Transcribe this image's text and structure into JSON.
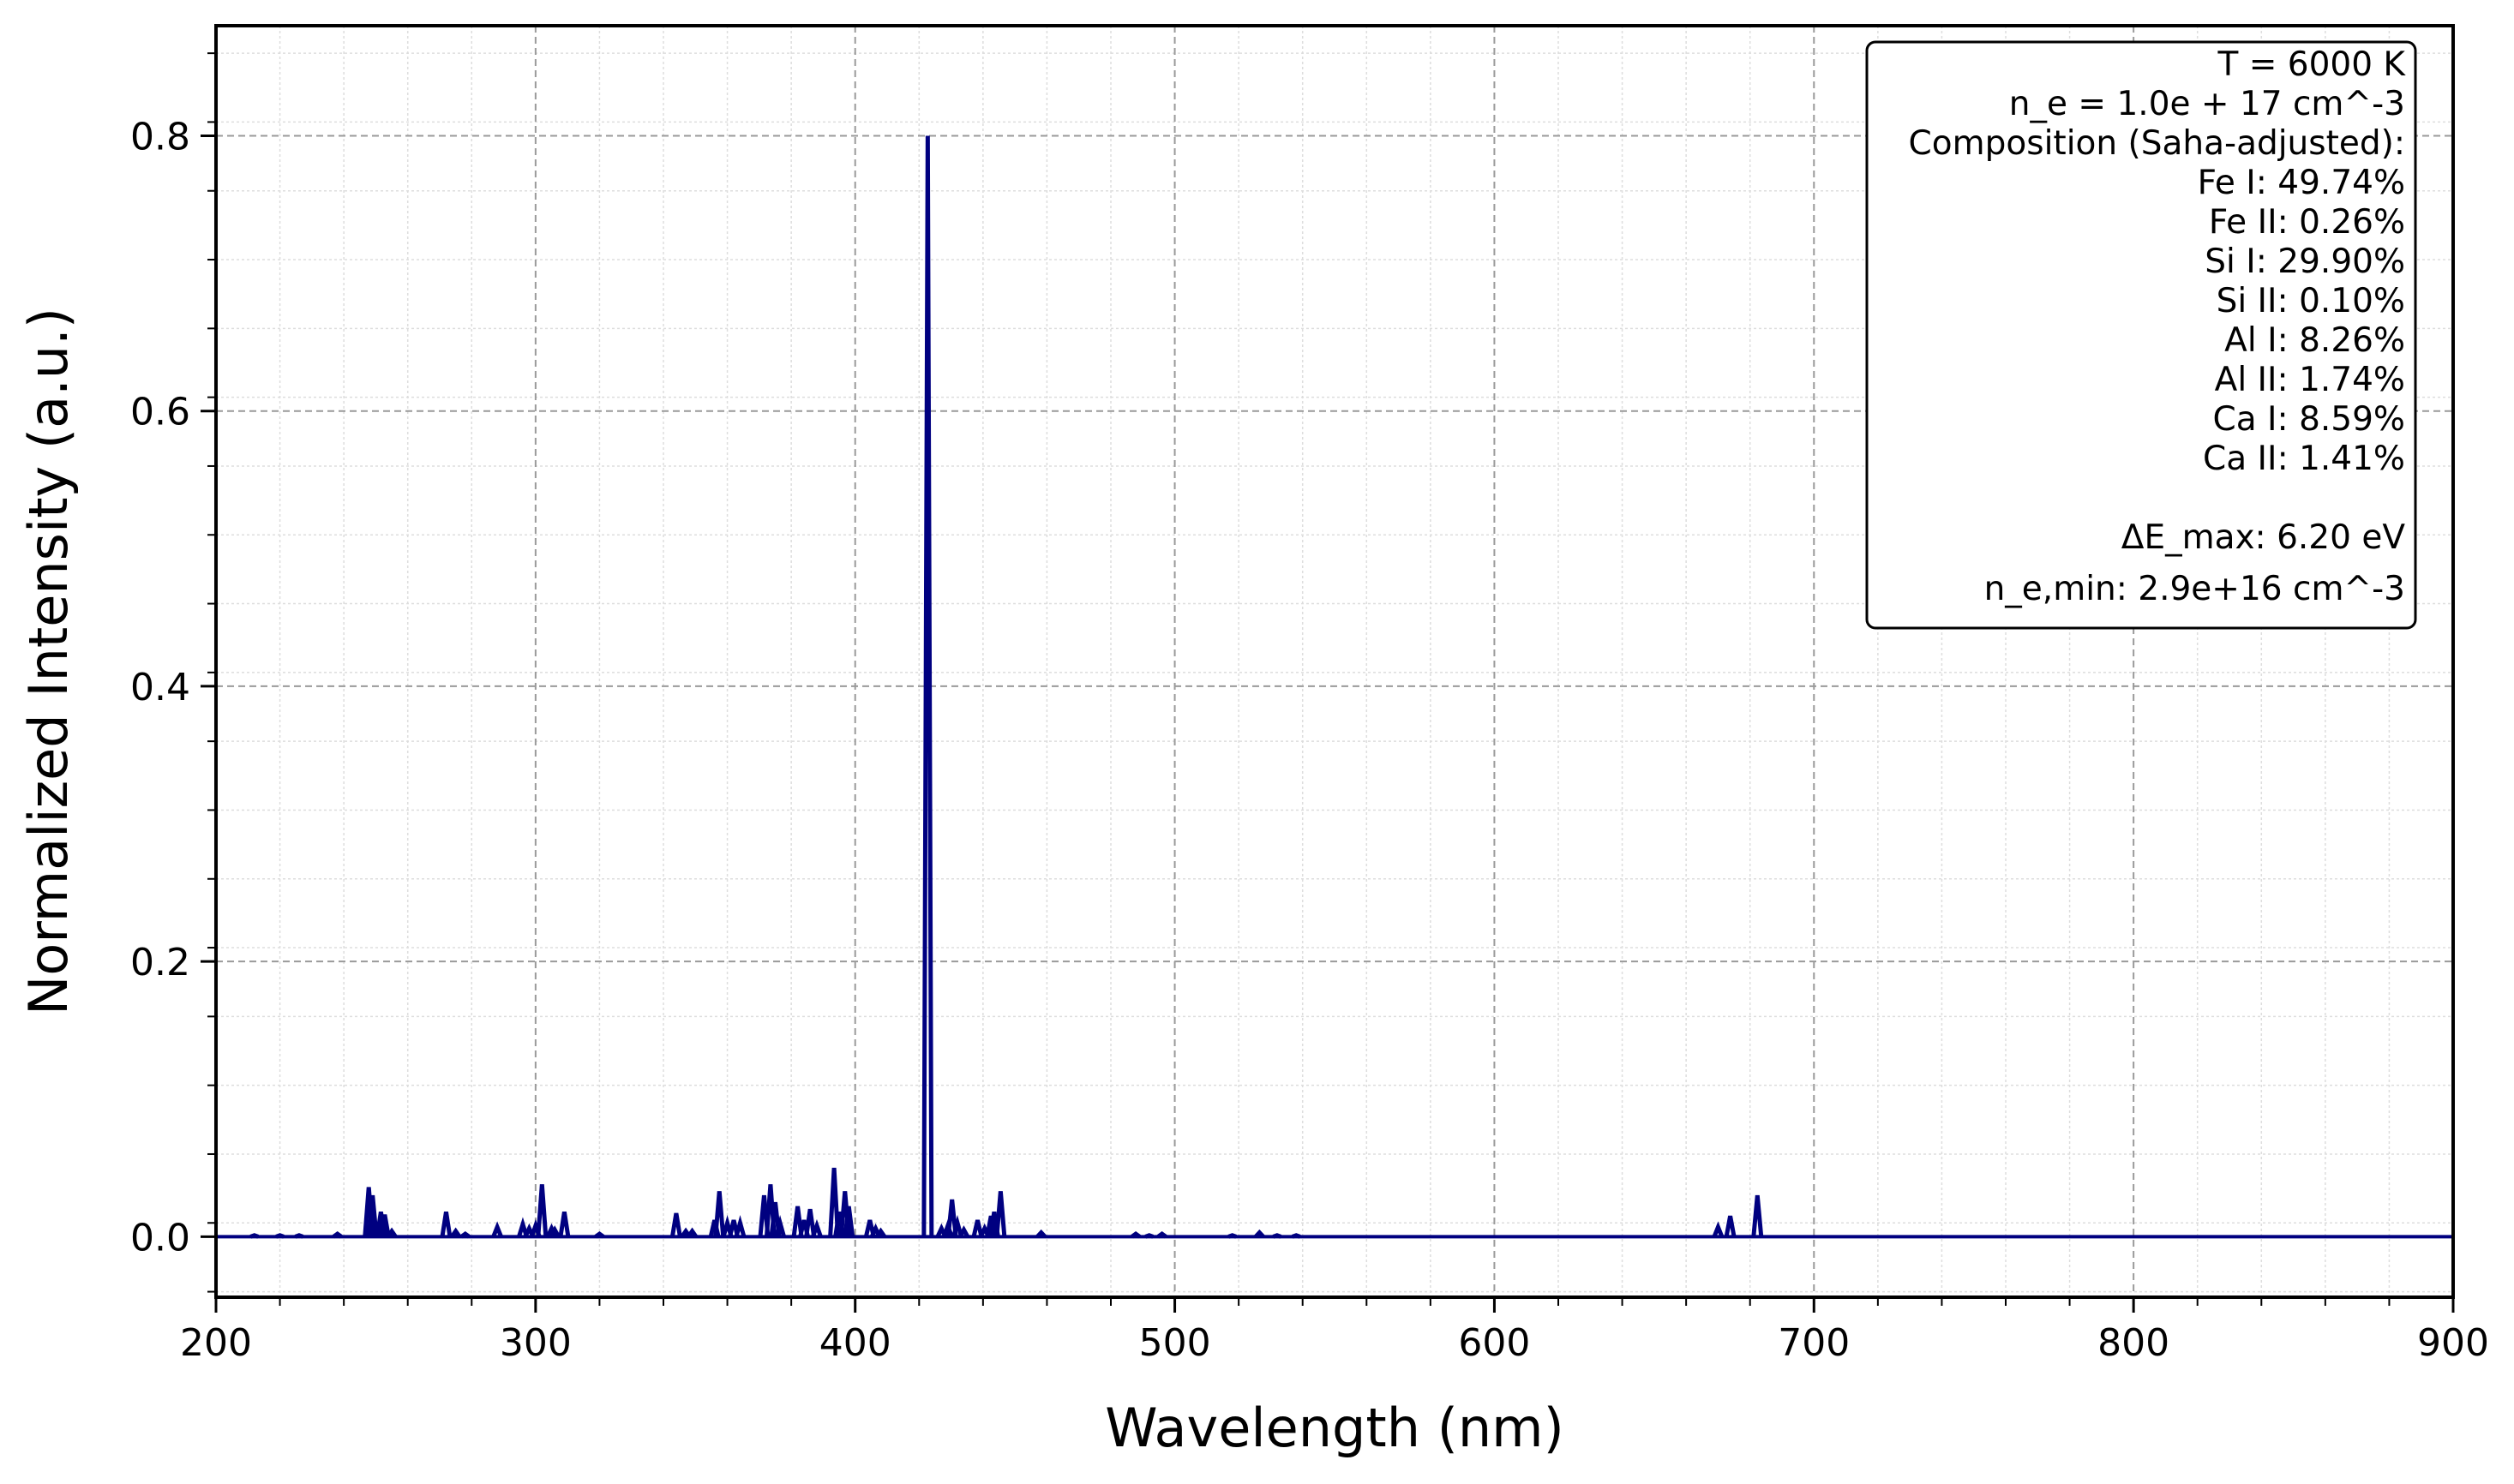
{
  "chart_data": {
    "type": "line",
    "title": "",
    "xlabel": "Wavelength (nm)",
    "ylabel": "Normalized Intensity (a.u.)",
    "xlim": [
      200,
      900
    ],
    "ylim": [
      -0.044,
      0.88
    ],
    "xticks": [
      200,
      300,
      400,
      500,
      600,
      700,
      800,
      900
    ],
    "xtick_labels": [
      "200",
      "300",
      "400",
      "500",
      "600",
      "700",
      "800",
      "900"
    ],
    "yticks": [
      0.0,
      0.2,
      0.4,
      0.6,
      0.8
    ],
    "ytick_labels": [
      "0.0",
      "0.2",
      "0.4",
      "0.6",
      "0.8"
    ],
    "grid": true,
    "minor_grid": true,
    "line_color": "#000080",
    "baseline": 0.0,
    "peaks": [
      {
        "x": 212,
        "y": 0.001
      },
      {
        "x": 220,
        "y": 0.001
      },
      {
        "x": 226,
        "y": 0.001
      },
      {
        "x": 238,
        "y": 0.002
      },
      {
        "x": 247.8,
        "y": 0.036
      },
      {
        "x": 249,
        "y": 0.03
      },
      {
        "x": 251.6,
        "y": 0.018
      },
      {
        "x": 252.8,
        "y": 0.016
      },
      {
        "x": 255,
        "y": 0.004
      },
      {
        "x": 272,
        "y": 0.018
      },
      {
        "x": 275,
        "y": 0.004
      },
      {
        "x": 278,
        "y": 0.002
      },
      {
        "x": 288,
        "y": 0.007
      },
      {
        "x": 296,
        "y": 0.009
      },
      {
        "x": 298,
        "y": 0.006
      },
      {
        "x": 300,
        "y": 0.008
      },
      {
        "x": 302,
        "y": 0.038
      },
      {
        "x": 305,
        "y": 0.006
      },
      {
        "x": 306,
        "y": 0.005
      },
      {
        "x": 309,
        "y": 0.018
      },
      {
        "x": 320,
        "y": 0.002
      },
      {
        "x": 344,
        "y": 0.017
      },
      {
        "x": 347,
        "y": 0.004
      },
      {
        "x": 349,
        "y": 0.004
      },
      {
        "x": 356,
        "y": 0.012
      },
      {
        "x": 357.5,
        "y": 0.033
      },
      {
        "x": 360,
        "y": 0.01
      },
      {
        "x": 362,
        "y": 0.012
      },
      {
        "x": 364,
        "y": 0.01
      },
      {
        "x": 371.5,
        "y": 0.03
      },
      {
        "x": 373.5,
        "y": 0.038
      },
      {
        "x": 375,
        "y": 0.025
      },
      {
        "x": 376.5,
        "y": 0.01
      },
      {
        "x": 382,
        "y": 0.022
      },
      {
        "x": 384,
        "y": 0.012
      },
      {
        "x": 385.9,
        "y": 0.02
      },
      {
        "x": 388,
        "y": 0.008
      },
      {
        "x": 393.4,
        "y": 0.05
      },
      {
        "x": 395,
        "y": 0.018
      },
      {
        "x": 396.8,
        "y": 0.033
      },
      {
        "x": 398,
        "y": 0.022
      },
      {
        "x": 404.6,
        "y": 0.012
      },
      {
        "x": 406.4,
        "y": 0.006
      },
      {
        "x": 408,
        "y": 0.004
      },
      {
        "x": 422.7,
        "y": 0.8
      },
      {
        "x": 427,
        "y": 0.006
      },
      {
        "x": 429,
        "y": 0.008
      },
      {
        "x": 430.3,
        "y": 0.027
      },
      {
        "x": 432,
        "y": 0.01
      },
      {
        "x": 434,
        "y": 0.005
      },
      {
        "x": 438.3,
        "y": 0.012
      },
      {
        "x": 440.5,
        "y": 0.006
      },
      {
        "x": 442.5,
        "y": 0.015
      },
      {
        "x": 443.5,
        "y": 0.018
      },
      {
        "x": 445.5,
        "y": 0.033
      },
      {
        "x": 458.2,
        "y": 0.003
      },
      {
        "x": 487.8,
        "y": 0.002
      },
      {
        "x": 492,
        "y": 0.001
      },
      {
        "x": 496,
        "y": 0.002
      },
      {
        "x": 518,
        "y": 0.001
      },
      {
        "x": 526.5,
        "y": 0.003
      },
      {
        "x": 532,
        "y": 0.001
      },
      {
        "x": 538,
        "y": 0.001
      },
      {
        "x": 670,
        "y": 0.007
      },
      {
        "x": 673.8,
        "y": 0.015
      },
      {
        "x": 682.3,
        "y": 0.03
      }
    ]
  },
  "legend": {
    "lines": [
      "T = 6000 K",
      "n_e = 1.0e + 17 cm^-3",
      "Composition (Saha-adjusted):",
      "Fe I: 49.74%",
      "Fe II: 0.26%",
      "Si I: 29.90%",
      "Si II: 0.10%",
      "Al I: 8.26%",
      "Al II: 1.74%",
      "Ca I: 8.59%",
      "Ca II: 1.41%",
      "",
      "ΔE_max: 6.20 eV",
      "n_e,min: 2.9e+16 cm^-3"
    ]
  }
}
